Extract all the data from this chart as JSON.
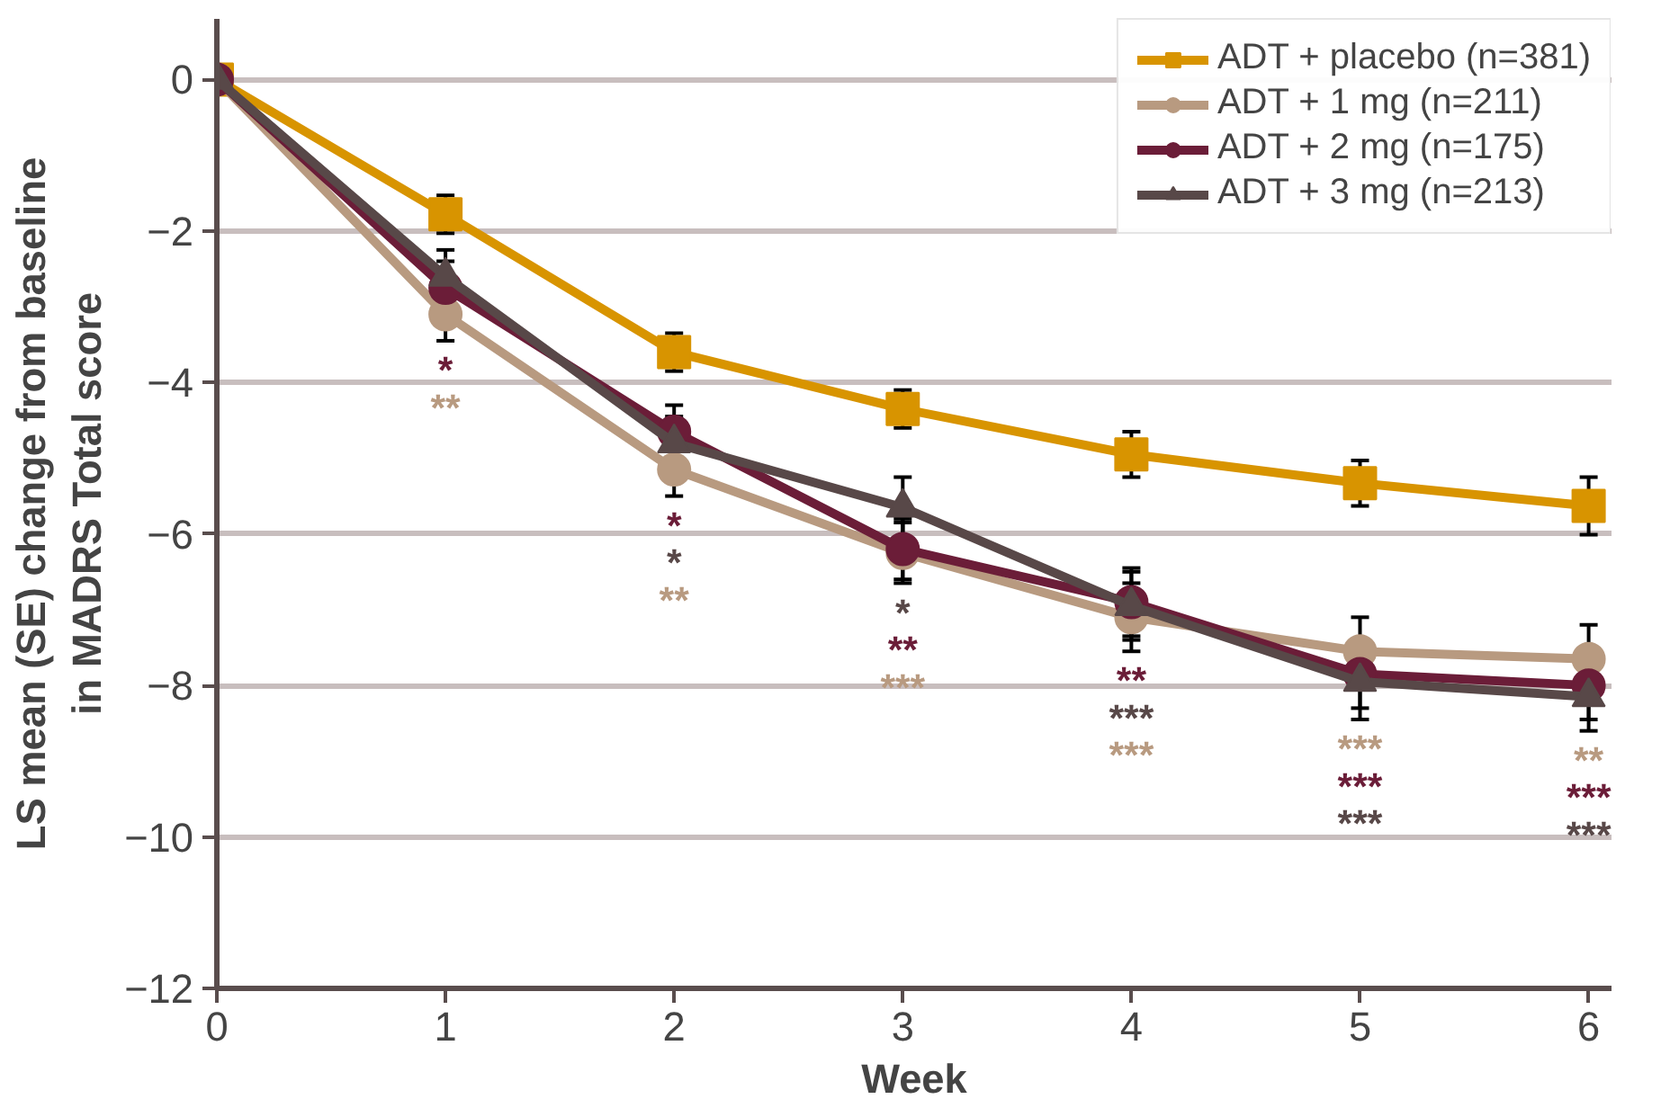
{
  "chart_data": {
    "type": "line",
    "xlabel": "Week",
    "ylabel": "LS mean (SE) change from baseline\nin MADRS Total score",
    "x": [
      0,
      1,
      2,
      3,
      4,
      5,
      6
    ],
    "xlim": [
      0,
      6.1
    ],
    "xticks": [
      0,
      1,
      2,
      3,
      4,
      5,
      6
    ],
    "ylim": [
      -12,
      0.8
    ],
    "yticks": [
      -12,
      -10,
      -8,
      -6,
      -4,
      -2,
      0
    ],
    "grid": "y",
    "legend": "top right",
    "series": [
      {
        "name": "ADT + placebo (n=381)",
        "color": "#d89400",
        "marker": "square",
        "values": [
          0,
          -1.78,
          -3.6,
          -4.35,
          -4.95,
          -5.33,
          -5.63
        ],
        "errors": [
          0,
          0.25,
          0.25,
          0.25,
          0.3,
          0.3,
          0.38
        ]
      },
      {
        "name": "ADT + 1 mg (n=211)",
        "color": "#b89a80",
        "marker": "circle",
        "values": [
          0,
          -3.1,
          -5.15,
          -6.25,
          -7.1,
          -7.55,
          -7.65
        ],
        "errors": [
          0,
          0.35,
          0.35,
          0.4,
          0.45,
          0.45,
          0.45
        ],
        "value_labels": [
          null,
          "**",
          "**",
          "***",
          "***",
          "***",
          "**"
        ]
      },
      {
        "name": "ADT + 2 mg (n=175)",
        "color": "#6b1d38",
        "marker": "circle",
        "values": [
          0,
          -2.75,
          -4.65,
          -6.2,
          -6.9,
          -7.85,
          -8.0
        ],
        "errors": [
          0,
          0.35,
          0.35,
          0.4,
          0.45,
          0.45,
          0.45
        ],
        "value_labels": [
          null,
          "*",
          "*",
          "**",
          "**",
          "***",
          "***"
        ]
      },
      {
        "name": "ADT + 3 mg (n=213)",
        "color": "#584848",
        "marker": "triangle",
        "values": [
          0,
          -2.6,
          -4.8,
          -5.65,
          -6.95,
          -7.95,
          -8.15
        ],
        "errors": [
          0,
          0.35,
          0.35,
          0.4,
          0.45,
          0.5,
          0.45
        ],
        "value_labels": [
          null,
          null,
          "*",
          "*",
          "***",
          "***",
          "***"
        ]
      }
    ]
  }
}
